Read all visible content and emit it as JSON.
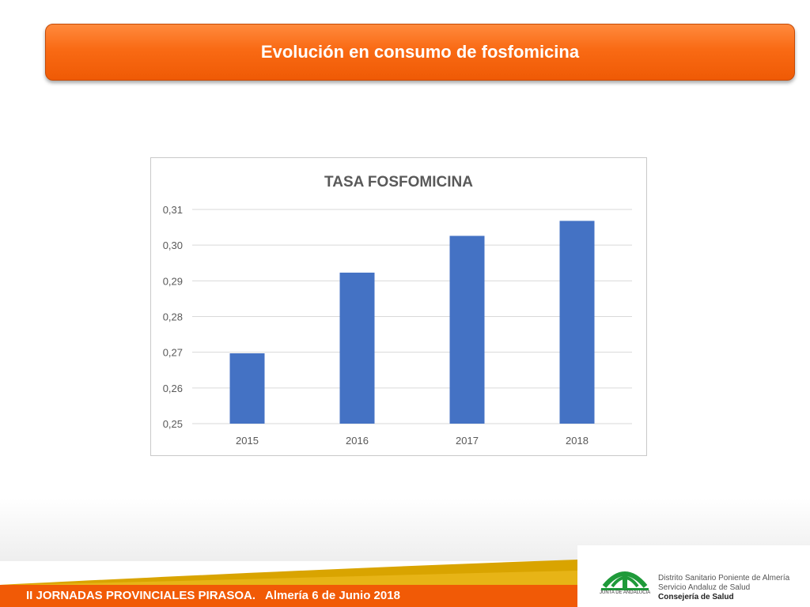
{
  "slide": {
    "title": "Evolución en consumo de fosfomicina"
  },
  "footer": {
    "event": "II JORNADAS PROVINCIALES PIRASOA.",
    "place_date": "Almería 6 de Junio 2018"
  },
  "logo": {
    "caption": "JUNTA DE ANDALUCIA",
    "lines": [
      "Distrito Sanitario Poniente de Almería",
      "Servicio Andaluz de Salud",
      "Consejería de Salud"
    ]
  },
  "colors": {
    "banner": "#f96a14",
    "bar": "#4472c4",
    "footer": "#f15a06",
    "stripe": "#d9a400",
    "logo_green": "#1f9a3a"
  },
  "chart_data": {
    "type": "bar",
    "title": "TASA FOSFOMICINA",
    "categories": [
      "2015",
      "2016",
      "2017",
      "2018"
    ],
    "values": [
      0.2697,
      0.2923,
      0.3026,
      0.3068
    ],
    "ylim": [
      0.25,
      0.31
    ],
    "yticks": [
      "0,25",
      "0,26",
      "0,27",
      "0,28",
      "0,29",
      "0,30",
      "0,31"
    ],
    "xlabel": "",
    "ylabel": "",
    "grid": true,
    "legend": "none"
  }
}
